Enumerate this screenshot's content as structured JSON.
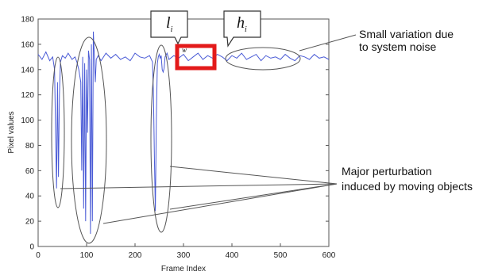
{
  "chart_data": {
    "type": "line",
    "xlabel": "Frame Index",
    "ylabel": "Pixel values",
    "xlim": [
      0,
      600
    ],
    "ylim": [
      0,
      180
    ],
    "xticks": [
      0,
      100,
      200,
      300,
      400,
      500,
      600
    ],
    "yticks": [
      0,
      20,
      40,
      60,
      80,
      100,
      120,
      140,
      160,
      180
    ],
    "grid": false,
    "series_color": "#4a5bd6",
    "baseline_value": 150,
    "noise_range": [
      144,
      156
    ],
    "series": [
      {
        "x": [
          0,
          8,
          16,
          24,
          30,
          34,
          36,
          38,
          40,
          42,
          44,
          46,
          50,
          56,
          62,
          70,
          76,
          80,
          84,
          88,
          90,
          92,
          94,
          96,
          98,
          100,
          102,
          104,
          106,
          108,
          110,
          112,
          114,
          116,
          118,
          120,
          124,
          130,
          140,
          150,
          160,
          170,
          180,
          190,
          200,
          210,
          220,
          230,
          236,
          238,
          240,
          242,
          244,
          246,
          248,
          250,
          252,
          254,
          256,
          258,
          260,
          262,
          266,
          270,
          280,
          290,
          300,
          310,
          320,
          330,
          340,
          350,
          360,
          370,
          380,
          390,
          400,
          410,
          420,
          430,
          440,
          450,
          460,
          470,
          480,
          490,
          500,
          510,
          520,
          530,
          540,
          550,
          560,
          570,
          580,
          590,
          600
        ],
        "y": [
          152,
          148,
          154,
          147,
          150,
          140,
          90,
          46,
          130,
          55,
          120,
          146,
          151,
          149,
          153,
          148,
          150,
          146,
          140,
          130,
          60,
          150,
          30,
          145,
          20,
          140,
          90,
          155,
          148,
          10,
          160,
          20,
          170,
          150,
          130,
          148,
          151,
          147,
          153,
          149,
          152,
          148,
          150,
          147,
          153,
          150,
          149,
          151,
          146,
          120,
          70,
          28,
          100,
          145,
          150,
          152,
          149,
          151,
          140,
          138,
          141,
          150,
          153,
          148,
          151,
          149,
          152,
          147,
          150,
          153,
          148,
          151,
          149,
          152,
          150,
          147,
          151,
          149,
          153,
          148,
          150,
          152,
          147,
          151,
          149,
          150,
          148,
          152,
          149,
          147,
          151,
          150,
          148,
          152,
          149,
          150,
          148
        ]
      }
    ],
    "window": {
      "start_x": 287,
      "end_x": 361,
      "label": "w"
    },
    "callouts": [
      {
        "label": "l",
        "subscript": "i"
      },
      {
        "label": "h",
        "subscript": "i"
      }
    ],
    "annotations": [
      {
        "text": "Small  variation due"
      },
      {
        "text": "to system noise"
      },
      {
        "text": "Major perturbation"
      },
      {
        "text": "induced by moving objects"
      }
    ]
  }
}
